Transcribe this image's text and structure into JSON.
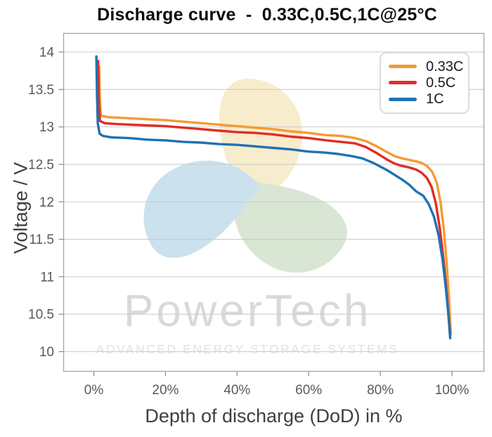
{
  "chart_data": {
    "type": "line",
    "title": "Discharge curve  -  0.33C,0.5C,1C@25°C",
    "xlabel": "Depth of discharge (DoD) in %",
    "ylabel": "Voltage / V",
    "xlim": [
      0,
      100
    ],
    "ylim": [
      10,
      14
    ],
    "grid": "horizontal-only",
    "legend_position": "top-right",
    "xticks": {
      "values": [
        0,
        20,
        40,
        60,
        80,
        100
      ],
      "labels": [
        "0%",
        "20%",
        "40%",
        "60%",
        "80%",
        "100%"
      ]
    },
    "yticks": {
      "values": [
        14,
        13.5,
        13,
        12.5,
        12,
        11.5,
        11,
        10.5,
        10
      ],
      "labels": [
        "14",
        "13.5",
        "13",
        "12.5",
        "12",
        "11.5",
        "11",
        "10.5",
        "10"
      ]
    },
    "series": [
      {
        "name": "0.33C",
        "color": "#f39b33",
        "points": [
          [
            1.5,
            13.8
          ],
          [
            1.7,
            13.35
          ],
          [
            2,
            13.15
          ],
          [
            4,
            13.13
          ],
          [
            8,
            13.12
          ],
          [
            12,
            13.11
          ],
          [
            16,
            13.1
          ],
          [
            20,
            13.09
          ],
          [
            25,
            13.07
          ],
          [
            30,
            13.05
          ],
          [
            35,
            13.03
          ],
          [
            40,
            13.01
          ],
          [
            45,
            12.99
          ],
          [
            50,
            12.97
          ],
          [
            55,
            12.94
          ],
          [
            60,
            12.92
          ],
          [
            65,
            12.89
          ],
          [
            69,
            12.88
          ],
          [
            73,
            12.85
          ],
          [
            76,
            12.81
          ],
          [
            79,
            12.74
          ],
          [
            82,
            12.66
          ],
          [
            84,
            12.61
          ],
          [
            86,
            12.58
          ],
          [
            88,
            12.56
          ],
          [
            90,
            12.54
          ],
          [
            91.5,
            12.52
          ],
          [
            93,
            12.48
          ],
          [
            94.5,
            12.4
          ],
          [
            95.8,
            12.25
          ],
          [
            96.8,
            12.0
          ],
          [
            97.7,
            11.65
          ],
          [
            98.5,
            11.2
          ],
          [
            99.2,
            10.7
          ],
          [
            99.7,
            10.24
          ]
        ]
      },
      {
        "name": "0.5C",
        "color": "#e02d25",
        "points": [
          [
            1.2,
            13.88
          ],
          [
            1.4,
            13.35
          ],
          [
            1.7,
            13.08
          ],
          [
            3,
            13.05
          ],
          [
            6,
            13.04
          ],
          [
            10,
            13.03
          ],
          [
            15,
            13.02
          ],
          [
            20,
            13.01
          ],
          [
            25,
            12.99
          ],
          [
            30,
            12.97
          ],
          [
            35,
            12.95
          ],
          [
            40,
            12.93
          ],
          [
            45,
            12.92
          ],
          [
            50,
            12.9
          ],
          [
            55,
            12.87
          ],
          [
            60,
            12.85
          ],
          [
            65,
            12.82
          ],
          [
            69,
            12.8
          ],
          [
            73,
            12.78
          ],
          [
            76,
            12.73
          ],
          [
            79,
            12.65
          ],
          [
            82,
            12.56
          ],
          [
            84,
            12.51
          ],
          [
            86,
            12.48
          ],
          [
            88,
            12.46
          ],
          [
            90,
            12.43
          ],
          [
            91.5,
            12.39
          ],
          [
            93,
            12.32
          ],
          [
            94.3,
            12.2
          ],
          [
            95.5,
            11.98
          ],
          [
            96.6,
            11.65
          ],
          [
            97.6,
            11.25
          ],
          [
            98.5,
            10.8
          ],
          [
            99.2,
            10.4
          ],
          [
            99.5,
            10.22
          ]
        ]
      },
      {
        "name": "1C",
        "color": "#1f72b2",
        "points": [
          [
            0.7,
            13.94
          ],
          [
            0.9,
            13.4
          ],
          [
            1.1,
            13.05
          ],
          [
            1.6,
            12.91
          ],
          [
            2.5,
            12.88
          ],
          [
            5,
            12.86
          ],
          [
            10,
            12.85
          ],
          [
            15,
            12.83
          ],
          [
            20,
            12.82
          ],
          [
            25,
            12.8
          ],
          [
            30,
            12.79
          ],
          [
            35,
            12.77
          ],
          [
            40,
            12.76
          ],
          [
            45,
            12.74
          ],
          [
            50,
            12.72
          ],
          [
            55,
            12.7
          ],
          [
            60,
            12.67
          ],
          [
            64,
            12.66
          ],
          [
            68,
            12.64
          ],
          [
            72,
            12.61
          ],
          [
            75,
            12.58
          ],
          [
            78,
            12.52
          ],
          [
            80,
            12.47
          ],
          [
            82,
            12.42
          ],
          [
            84,
            12.36
          ],
          [
            86,
            12.3
          ],
          [
            88,
            12.23
          ],
          [
            90,
            12.14
          ],
          [
            92,
            12.08
          ],
          [
            93.5,
            11.97
          ],
          [
            95,
            11.8
          ],
          [
            96.3,
            11.55
          ],
          [
            97.4,
            11.22
          ],
          [
            98.3,
            10.85
          ],
          [
            99,
            10.5
          ],
          [
            99.5,
            10.18
          ]
        ]
      }
    ]
  },
  "watermark": {
    "name": "PowerTech",
    "tagline": "ADVANCED ENERGY STORAGE SYSTEMS",
    "text_color": "#d9d9d9",
    "tagline_color": "#e2e2e2",
    "logo_colors": {
      "top": "#f7eccc",
      "right": "#d9e6d4",
      "left": "#cbe2ee"
    }
  },
  "colors": {
    "title": "#0b0b0b",
    "axis_title": "#3f3f3f",
    "tick_label": "#595959",
    "tick_mark": "#8c8c8c",
    "grid": "#cbcbcb",
    "plot_border": "#a6a6a6",
    "legend_border": "#dcdcdc",
    "legend_text": "#1c1c1c",
    "background": "#ffffff"
  }
}
